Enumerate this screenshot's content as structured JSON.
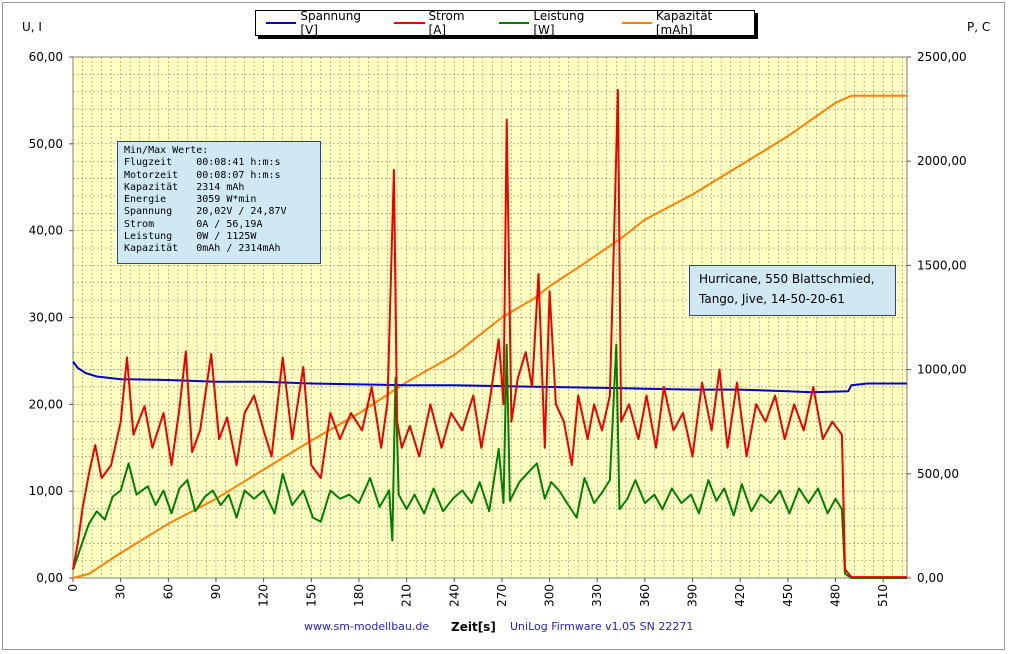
{
  "chart_data": {
    "type": "line",
    "legend": [
      {
        "name": "Spannung [V]",
        "color": "#0000cc"
      },
      {
        "name": "Strom [A]",
        "color": "#ee0000"
      },
      {
        "name": "Leistung [W]",
        "color": "#008000"
      },
      {
        "name": "Kapazität [mAh]",
        "color": "#ff7f00"
      }
    ],
    "left_axis_title": "U, I",
    "right_axis_title": "P, C",
    "xlabel": "Zeit[s]",
    "xlim": [
      0,
      525
    ],
    "ylim_left": [
      0,
      60
    ],
    "ylim_right": [
      0,
      2500
    ],
    "x_ticks": [
      "0",
      "30",
      "60",
      "90",
      "120",
      "150",
      "180",
      "210",
      "240",
      "270",
      "300",
      "330",
      "360",
      "390",
      "420",
      "450",
      "480",
      "510"
    ],
    "y_left_ticks": [
      "0,00",
      "10,00",
      "20,00",
      "30,00",
      "40,00",
      "50,00",
      "60,00"
    ],
    "y_right_ticks": [
      "0,00",
      "500,00",
      "1000,00",
      "1500,00",
      "2000,00",
      "2500,00"
    ],
    "series": [
      {
        "name": "Spannung [V]",
        "axis": "left",
        "color": "#0000cc",
        "points": [
          [
            0,
            24.9
          ],
          [
            3,
            24.2
          ],
          [
            8,
            23.6
          ],
          [
            15,
            23.2
          ],
          [
            30,
            22.9
          ],
          [
            60,
            22.8
          ],
          [
            90,
            22.6
          ],
          [
            120,
            22.6
          ],
          [
            150,
            22.4
          ],
          [
            180,
            22.3
          ],
          [
            210,
            22.2
          ],
          [
            240,
            22.2
          ],
          [
            270,
            22.1
          ],
          [
            300,
            22.0
          ],
          [
            330,
            21.9
          ],
          [
            360,
            21.8
          ],
          [
            390,
            21.7
          ],
          [
            420,
            21.7
          ],
          [
            450,
            21.5
          ],
          [
            465,
            21.4
          ],
          [
            488,
            21.5
          ],
          [
            490,
            22.2
          ],
          [
            500,
            22.4
          ],
          [
            525,
            22.4
          ]
        ]
      },
      {
        "name": "Strom [A]",
        "axis": "left",
        "color": "#ee0000",
        "points": [
          [
            0,
            1.0
          ],
          [
            3,
            4
          ],
          [
            6,
            8
          ],
          [
            10,
            12
          ],
          [
            14,
            15.3
          ],
          [
            18,
            11.5
          ],
          [
            24,
            13
          ],
          [
            30,
            18
          ],
          [
            34,
            25.4
          ],
          [
            38,
            16.5
          ],
          [
            45,
            19.8
          ],
          [
            50,
            15
          ],
          [
            57,
            19
          ],
          [
            62,
            13
          ],
          [
            67,
            19.5
          ],
          [
            71,
            26.1
          ],
          [
            75,
            14.5
          ],
          [
            80,
            17
          ],
          [
            87,
            25.8
          ],
          [
            92,
            16
          ],
          [
            97,
            18.5
          ],
          [
            103,
            13
          ],
          [
            108,
            19
          ],
          [
            114,
            21
          ],
          [
            120,
            17
          ],
          [
            125,
            14
          ],
          [
            132,
            25.4
          ],
          [
            138,
            16
          ],
          [
            145,
            24.3
          ],
          [
            150,
            13
          ],
          [
            156,
            11.5
          ],
          [
            162,
            19
          ],
          [
            168,
            16
          ],
          [
            175,
            19
          ],
          [
            182,
            17
          ],
          [
            188,
            22
          ],
          [
            194,
            15
          ],
          [
            198,
            20.3
          ],
          [
            202,
            47.0
          ],
          [
            204,
            18
          ],
          [
            207,
            15
          ],
          [
            212,
            17.5
          ],
          [
            218,
            14
          ],
          [
            225,
            20
          ],
          [
            232,
            15
          ],
          [
            238,
            19
          ],
          [
            245,
            17
          ],
          [
            252,
            21
          ],
          [
            257,
            15
          ],
          [
            262,
            20
          ],
          [
            268,
            27.5
          ],
          [
            271,
            20
          ],
          [
            273,
            52.8
          ],
          [
            276,
            18
          ],
          [
            280,
            23
          ],
          [
            285,
            26
          ],
          [
            289,
            22
          ],
          [
            293,
            35
          ],
          [
            297,
            15
          ],
          [
            300,
            33
          ],
          [
            304,
            20
          ],
          [
            309,
            18
          ],
          [
            314,
            13
          ],
          [
            318,
            21
          ],
          [
            324,
            16
          ],
          [
            328,
            20
          ],
          [
            333,
            17
          ],
          [
            338,
            21
          ],
          [
            343,
            56.2
          ],
          [
            345,
            18
          ],
          [
            350,
            20
          ],
          [
            356,
            16
          ],
          [
            361,
            21
          ],
          [
            367,
            15
          ],
          [
            372,
            22
          ],
          [
            378,
            17
          ],
          [
            384,
            19
          ],
          [
            390,
            14
          ],
          [
            396,
            22.5
          ],
          [
            402,
            17
          ],
          [
            407,
            24
          ],
          [
            412,
            15
          ],
          [
            418,
            22.5
          ],
          [
            424,
            14
          ],
          [
            430,
            20
          ],
          [
            436,
            18
          ],
          [
            442,
            21
          ],
          [
            448,
            16
          ],
          [
            454,
            20
          ],
          [
            460,
            17
          ],
          [
            466,
            22
          ],
          [
            472,
            16
          ],
          [
            478,
            18
          ],
          [
            484,
            16.5
          ],
          [
            486,
            1
          ],
          [
            490,
            0.1
          ],
          [
            525,
            0.1
          ]
        ]
      },
      {
        "name": "Leistung [W]",
        "axis": "right",
        "color": "#008000",
        "points": [
          [
            0,
            40
          ],
          [
            5,
            150
          ],
          [
            10,
            260
          ],
          [
            15,
            320
          ],
          [
            20,
            280
          ],
          [
            25,
            390
          ],
          [
            30,
            420
          ],
          [
            35,
            550
          ],
          [
            40,
            400
          ],
          [
            47,
            440
          ],
          [
            52,
            350
          ],
          [
            57,
            420
          ],
          [
            62,
            310
          ],
          [
            67,
            430
          ],
          [
            72,
            470
          ],
          [
            77,
            320
          ],
          [
            83,
            390
          ],
          [
            88,
            420
          ],
          [
            93,
            350
          ],
          [
            98,
            400
          ],
          [
            103,
            290
          ],
          [
            108,
            420
          ],
          [
            114,
            380
          ],
          [
            120,
            420
          ],
          [
            127,
            310
          ],
          [
            132,
            500
          ],
          [
            138,
            350
          ],
          [
            145,
            420
          ],
          [
            151,
            290
          ],
          [
            156,
            270
          ],
          [
            162,
            420
          ],
          [
            168,
            380
          ],
          [
            174,
            400
          ],
          [
            180,
            360
          ],
          [
            187,
            480
          ],
          [
            193,
            340
          ],
          [
            199,
            420
          ],
          [
            201,
            180
          ],
          [
            203,
            960
          ],
          [
            205,
            400
          ],
          [
            210,
            330
          ],
          [
            215,
            400
          ],
          [
            221,
            310
          ],
          [
            227,
            430
          ],
          [
            233,
            320
          ],
          [
            239,
            380
          ],
          [
            245,
            420
          ],
          [
            251,
            360
          ],
          [
            256,
            460
          ],
          [
            262,
            320
          ],
          [
            268,
            620
          ],
          [
            271,
            360
          ],
          [
            273,
            1120
          ],
          [
            275,
            370
          ],
          [
            281,
            460
          ],
          [
            287,
            510
          ],
          [
            292,
            550
          ],
          [
            297,
            380
          ],
          [
            301,
            460
          ],
          [
            306,
            420
          ],
          [
            311,
            360
          ],
          [
            317,
            290
          ],
          [
            322,
            480
          ],
          [
            328,
            360
          ],
          [
            333,
            410
          ],
          [
            338,
            470
          ],
          [
            342,
            1120
          ],
          [
            344,
            330
          ],
          [
            349,
            380
          ],
          [
            354,
            470
          ],
          [
            360,
            360
          ],
          [
            366,
            400
          ],
          [
            371,
            330
          ],
          [
            377,
            430
          ],
          [
            383,
            360
          ],
          [
            389,
            400
          ],
          [
            394,
            310
          ],
          [
            400,
            470
          ],
          [
            405,
            370
          ],
          [
            410,
            430
          ],
          [
            416,
            300
          ],
          [
            421,
            450
          ],
          [
            427,
            320
          ],
          [
            433,
            400
          ],
          [
            439,
            360
          ],
          [
            445,
            420
          ],
          [
            451,
            310
          ],
          [
            457,
            430
          ],
          [
            463,
            360
          ],
          [
            469,
            430
          ],
          [
            475,
            310
          ],
          [
            480,
            380
          ],
          [
            484,
            330
          ],
          [
            486,
            20
          ],
          [
            490,
            0
          ],
          [
            525,
            0
          ]
        ]
      },
      {
        "name": "Kapazität [mAh]",
        "axis": "right",
        "color": "#ff7f00",
        "points": [
          [
            0,
            0
          ],
          [
            10,
            20
          ],
          [
            20,
            70
          ],
          [
            30,
            120
          ],
          [
            60,
            260
          ],
          [
            90,
            380
          ],
          [
            120,
            520
          ],
          [
            150,
            660
          ],
          [
            180,
            790
          ],
          [
            210,
            940
          ],
          [
            240,
            1070
          ],
          [
            270,
            1250
          ],
          [
            290,
            1340
          ],
          [
            300,
            1400
          ],
          [
            320,
            1500
          ],
          [
            345,
            1630
          ],
          [
            360,
            1720
          ],
          [
            390,
            1840
          ],
          [
            420,
            1980
          ],
          [
            450,
            2120
          ],
          [
            480,
            2280
          ],
          [
            490,
            2314
          ],
          [
            525,
            2314
          ]
        ]
      }
    ]
  },
  "info_box": {
    "lines": [
      "Min/Max Werte:",
      "Flugzeit    00:08:41 h:m:s",
      "Motorzeit   00:08:07 h:m:s",
      "Kapazität   2314 mAh",
      "Energie     3059 W*min",
      "Spannung    20,02V / 24,87V",
      "Strom       0A / 56,19A",
      "Leistung    0W / 1125W",
      "Kapazität   0mAh / 2314mAh"
    ]
  },
  "title_box": {
    "line1": "Hurricane, 550 Blattschmied,",
    "line2": "Tango, Jive, 14-50-20-61"
  },
  "footer": {
    "website": "www.sm-modellbau.de",
    "firmware": "UniLog Firmware v1.05 SN 22271"
  }
}
